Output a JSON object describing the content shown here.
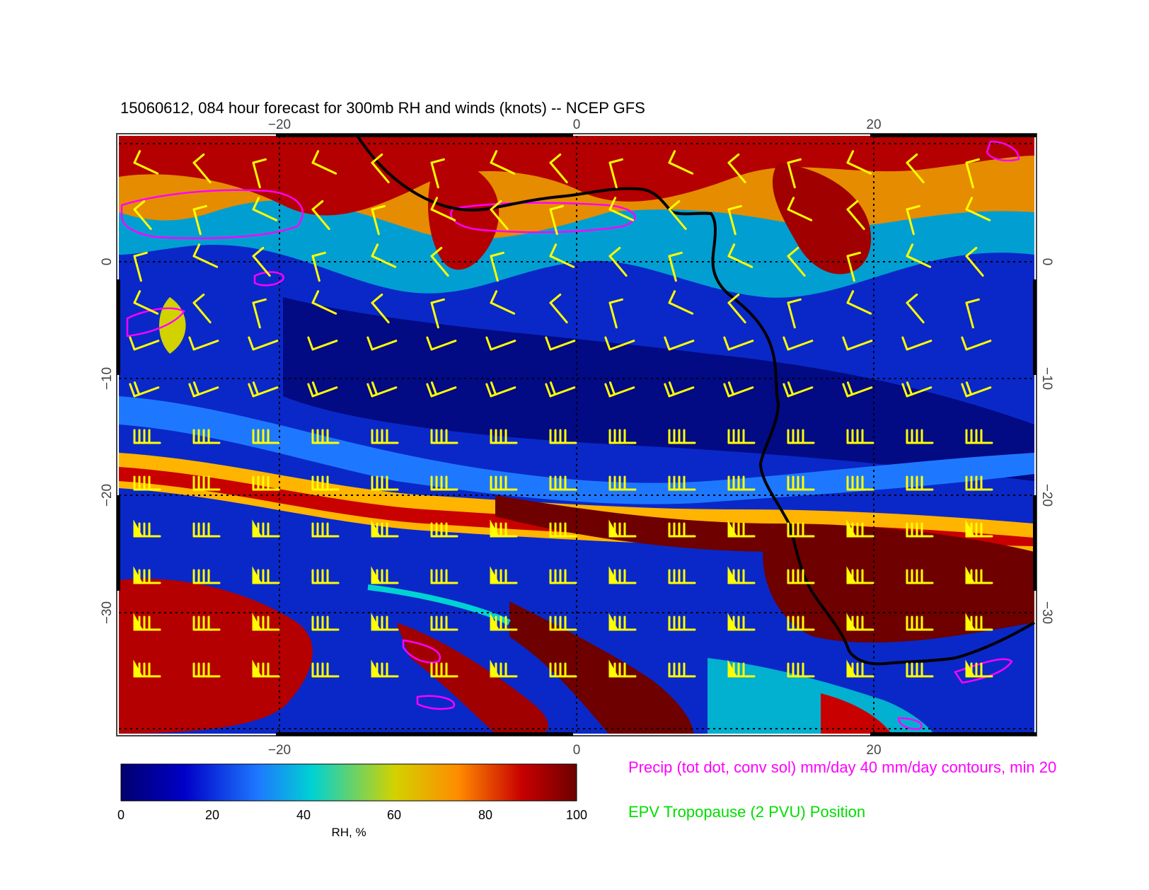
{
  "title": "15060612, 084 hour forecast for 300mb RH and winds (knots) -- NCEP GFS",
  "axes": {
    "lon_ticks": [
      "−20",
      "0",
      "20"
    ],
    "lat_ticks": [
      "0",
      "−10",
      "−20",
      "−30"
    ]
  },
  "colorbar": {
    "ticks": [
      "0",
      "20",
      "40",
      "60",
      "80",
      "100"
    ],
    "label": "RH, %",
    "colors": [
      "#00006e",
      "#0000c8",
      "#1e78ff",
      "#00d2d2",
      "#d2d200",
      "#ff8c00",
      "#c80000",
      "#6e0000"
    ]
  },
  "legend": {
    "precip": "Precip (tot dot, conv sol) mm/day 40 mm/day contours, min 20",
    "precip_color": "#ff00ff",
    "tropopause": "EPV Tropopause (2 PVU) Position",
    "tropopause_color": "#00dd00"
  },
  "colors": {
    "barb": "#ffff00",
    "coast": "#000000",
    "precip_contour": "#ff00ff",
    "grid": "#000000"
  }
}
